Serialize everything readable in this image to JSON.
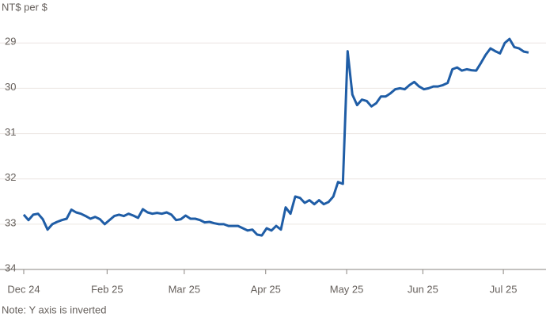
{
  "chart_data": {
    "type": "line",
    "subtitle": "NT$ per $",
    "note": "Note: Y axis is inverted",
    "series": [
      {
        "name": "NT$ per $",
        "color": "#1f5da6",
        "values": [
          32.79,
          32.91,
          32.79,
          32.77,
          32.89,
          33.12,
          33.0,
          32.95,
          32.91,
          32.88,
          32.68,
          32.74,
          32.77,
          32.82,
          32.88,
          32.84,
          32.89,
          33.0,
          32.91,
          32.82,
          32.79,
          32.82,
          32.77,
          32.81,
          32.86,
          32.67,
          32.74,
          32.77,
          32.75,
          32.77,
          32.74,
          32.79,
          32.91,
          32.89,
          32.81,
          32.88,
          32.88,
          32.91,
          32.96,
          32.95,
          32.98,
          33.0,
          33.0,
          33.04,
          33.04,
          33.04,
          33.09,
          33.14,
          33.12,
          33.23,
          33.25,
          33.09,
          33.14,
          33.04,
          33.12,
          32.63,
          32.77,
          32.39,
          32.42,
          32.53,
          32.47,
          32.56,
          32.47,
          32.56,
          32.51,
          32.39,
          32.07,
          32.11,
          29.18,
          30.14,
          30.37,
          30.25,
          30.28,
          30.4,
          30.33,
          30.18,
          30.18,
          30.11,
          30.02,
          30.0,
          30.02,
          29.93,
          29.86,
          29.96,
          30.02,
          30.0,
          29.96,
          29.96,
          29.93,
          29.88,
          29.58,
          29.54,
          29.61,
          29.58,
          29.6,
          29.61,
          29.44,
          29.26,
          29.12,
          29.18,
          29.23,
          29.0,
          28.91,
          29.09,
          29.12,
          29.19,
          29.21
        ]
      }
    ],
    "xlim": [
      0,
      106
    ],
    "xticks": [
      {
        "value": 0,
        "label": "Dec 24"
      },
      {
        "value": 17.5,
        "label": "Feb 25"
      },
      {
        "value": 33.7,
        "label": "Mar 25"
      },
      {
        "value": 50.8,
        "label": "Apr 25"
      },
      {
        "value": 67.8,
        "label": "May 25"
      },
      {
        "value": 83.8,
        "label": "Jun 25"
      },
      {
        "value": 100.7,
        "label": "Jul 25"
      }
    ],
    "ylim": [
      34,
      28.4
    ],
    "yticks": [
      29,
      30,
      31,
      32,
      33,
      34
    ],
    "y_inverted": true,
    "grid": true
  }
}
